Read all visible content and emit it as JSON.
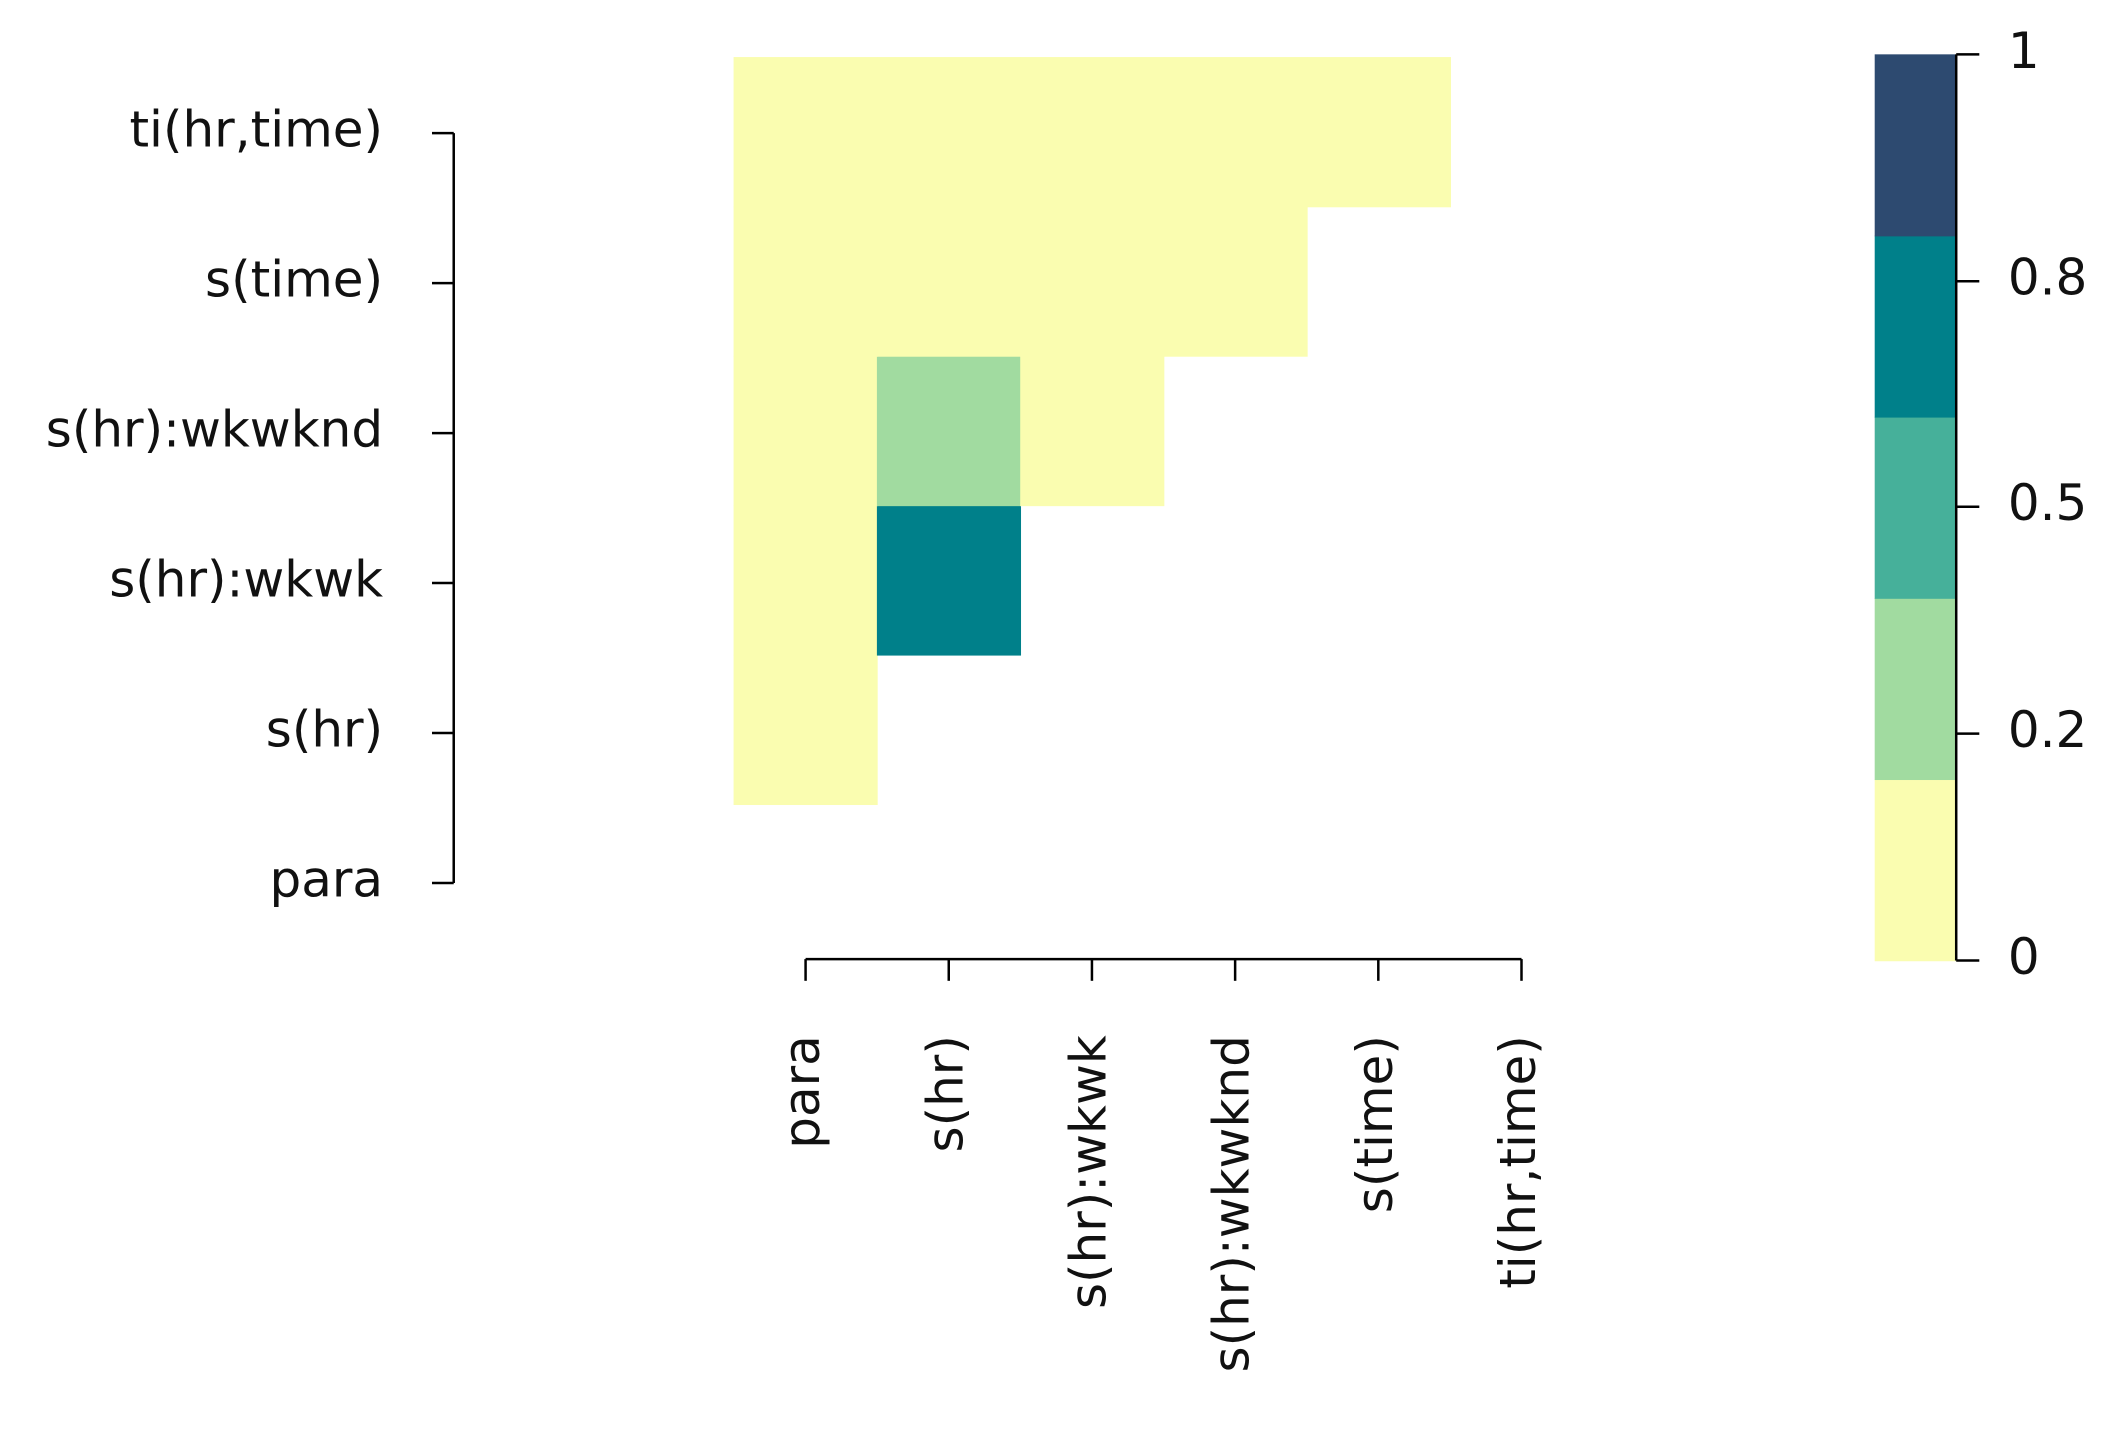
{
  "chart_data": {
    "type": "heatmap",
    "title": "",
    "xlabel": "",
    "ylabel": "",
    "x_labels": [
      "para",
      "s(hr)",
      "s(hr):wkwk",
      "s(hr):wkwknd",
      "s(time)",
      "ti(hr,time)"
    ],
    "y_labels": [
      "para",
      "s(hr)",
      "s(hr):wkwk",
      "s(hr):wkwknd",
      "s(time)",
      "ti(hr,time)"
    ],
    "cells": [
      {
        "x": "para",
        "y": "s(hr)",
        "value": 0.05
      },
      {
        "x": "para",
        "y": "s(hr):wkwk",
        "value": 0.05
      },
      {
        "x": "s(hr)",
        "y": "s(hr):wkwk",
        "value": 0.75
      },
      {
        "x": "para",
        "y": "s(hr):wkwknd",
        "value": 0.05
      },
      {
        "x": "s(hr)",
        "y": "s(hr):wkwknd",
        "value": 0.35
      },
      {
        "x": "s(hr):wkwk",
        "y": "s(hr):wkwknd",
        "value": 0.05
      },
      {
        "x": "para",
        "y": "s(time)",
        "value": 0.05
      },
      {
        "x": "s(hr)",
        "y": "s(time)",
        "value": 0.05
      },
      {
        "x": "s(hr):wkwk",
        "y": "s(time)",
        "value": 0.05
      },
      {
        "x": "s(hr):wkwknd",
        "y": "s(time)",
        "value": 0.05
      },
      {
        "x": "para",
        "y": "ti(hr,time)",
        "value": 0.05
      },
      {
        "x": "s(hr)",
        "y": "ti(hr,time)",
        "value": 0.05
      },
      {
        "x": "s(hr):wkwk",
        "y": "ti(hr,time)",
        "value": 0.05
      },
      {
        "x": "s(hr):wkwknd",
        "y": "ti(hr,time)",
        "value": 0.05
      },
      {
        "x": "s(time)",
        "y": "ti(hr,time)",
        "value": 0.05
      }
    ],
    "colorbar": {
      "range": [
        0,
        1
      ],
      "tick_labels": [
        "0",
        "0.2",
        "0.5",
        "0.8",
        "1"
      ],
      "tick_values": [
        0,
        0.2,
        0.5,
        0.8,
        1
      ],
      "bins": [
        {
          "from": 0.0,
          "to": 0.2,
          "color": "#FAFDB0"
        },
        {
          "from": 0.2,
          "to": 0.4,
          "color": "#A1DBA0"
        },
        {
          "from": 0.4,
          "to": 0.6,
          "color": "#46B09A"
        },
        {
          "from": 0.6,
          "to": 0.8,
          "color": "#00808A"
        },
        {
          "from": 0.8,
          "to": 1.0,
          "color": "#2D4A70"
        }
      ],
      "placement": "right"
    },
    "grid": false,
    "legend": "none"
  }
}
